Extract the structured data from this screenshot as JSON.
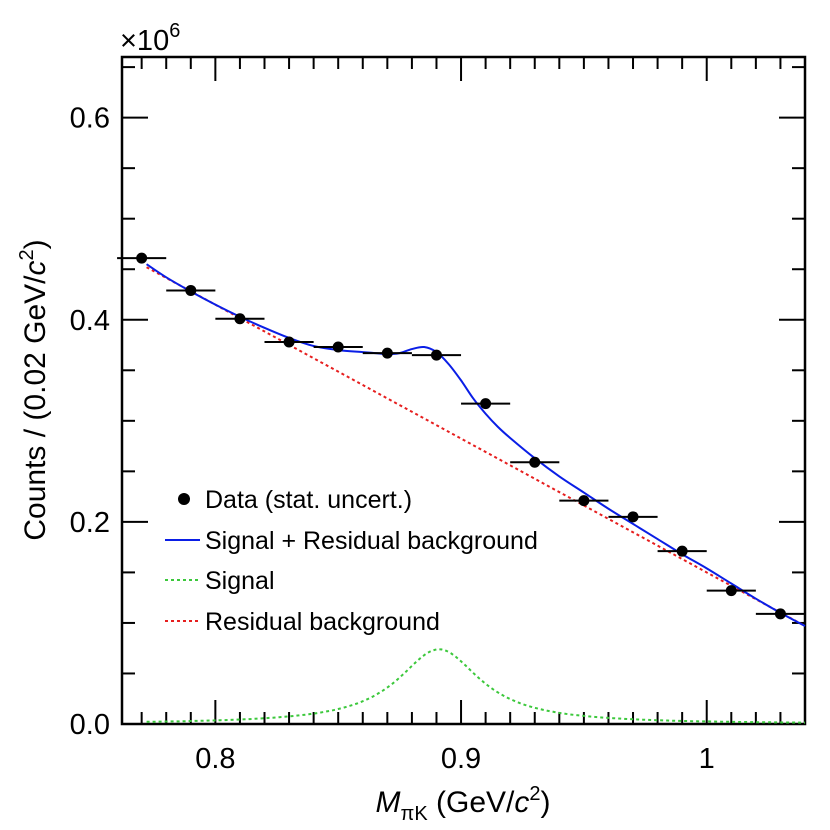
{
  "chart_data": {
    "type": "scatter",
    "xlabel": {
      "var": "M",
      "sub": "πK",
      "rest": " (GeV/",
      "c": "c",
      "sup": "2",
      "close": ")"
    },
    "ylabel": {
      "pre": "Counts / (0.02 GeV/",
      "c": "c",
      "sup": "2",
      "close": ")"
    },
    "multiplier": {
      "base": "×10",
      "exp": "6"
    },
    "xlim": [
      0.762,
      1.04
    ],
    "ylim": [
      0.0,
      0.66
    ],
    "xticks": [
      {
        "v": 0.8,
        "label": "0.8"
      },
      {
        "v": 0.9,
        "label": "0.9"
      },
      {
        "v": 1.0,
        "label": "1"
      }
    ],
    "yticks": [
      {
        "v": 0.0,
        "label": "0.0"
      },
      {
        "v": 0.2,
        "label": "0.2"
      },
      {
        "v": 0.4,
        "label": "0.4"
      },
      {
        "v": 0.6,
        "label": "0.6"
      }
    ],
    "bin_width": 0.02,
    "data": {
      "name": "Data (stat. uncert.)",
      "x": [
        0.77,
        0.79,
        0.81,
        0.83,
        0.85,
        0.87,
        0.89,
        0.91,
        0.93,
        0.95,
        0.97,
        0.99,
        1.01,
        1.03
      ],
      "y": [
        0.461,
        0.429,
        0.401,
        0.378,
        0.373,
        0.367,
        0.365,
        0.317,
        0.259,
        0.221,
        0.205,
        0.171,
        0.132,
        0.109
      ]
    },
    "curves": [
      {
        "name": "Signal + Residual background",
        "color": "#0a1ee6",
        "style": "solid",
        "x": [
          0.772,
          0.78,
          0.79,
          0.8,
          0.81,
          0.82,
          0.83,
          0.84,
          0.85,
          0.86,
          0.865,
          0.87,
          0.875,
          0.88,
          0.885,
          0.89,
          0.895,
          0.9,
          0.905,
          0.91,
          0.915,
          0.92,
          0.93,
          0.94,
          0.95,
          0.96,
          0.97,
          0.98,
          0.99,
          1.0,
          1.01,
          1.02,
          1.03,
          1.04
        ],
        "y": [
          0.455,
          0.442,
          0.428,
          0.415,
          0.403,
          0.392,
          0.382,
          0.374,
          0.37,
          0.368,
          0.367,
          0.366,
          0.367,
          0.371,
          0.373,
          0.368,
          0.356,
          0.34,
          0.322,
          0.307,
          0.294,
          0.283,
          0.263,
          0.245,
          0.229,
          0.213,
          0.198,
          0.183,
          0.168,
          0.154,
          0.139,
          0.124,
          0.11,
          0.097
        ]
      },
      {
        "name": "Signal",
        "color": "#3cc83c",
        "style": "dotted",
        "peak": 0.074,
        "mean": 0.891,
        "width": 0.041,
        "x_range": [
          0.772,
          1.04
        ]
      },
      {
        "name": "Residual background",
        "color": "#e61e1e",
        "style": "dotted",
        "x": [
          0.772,
          1.04
        ],
        "y": [
          0.452,
          0.097
        ]
      }
    ],
    "legend_position": "bottom-left"
  }
}
